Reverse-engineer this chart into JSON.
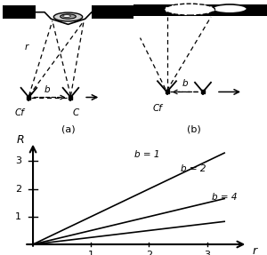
{
  "fig_width": 3.0,
  "fig_height": 2.87,
  "bg_color": "#ffffff",
  "graph": {
    "b_values": [
      1,
      2,
      4
    ],
    "x_ticks": [
      1,
      2,
      3
    ],
    "y_ticks": [
      1,
      2,
      3
    ],
    "xlabel": "r",
    "ylabel": "R",
    "line_labels": [
      "b = 1",
      "b = 2",
      "b = 4"
    ]
  }
}
